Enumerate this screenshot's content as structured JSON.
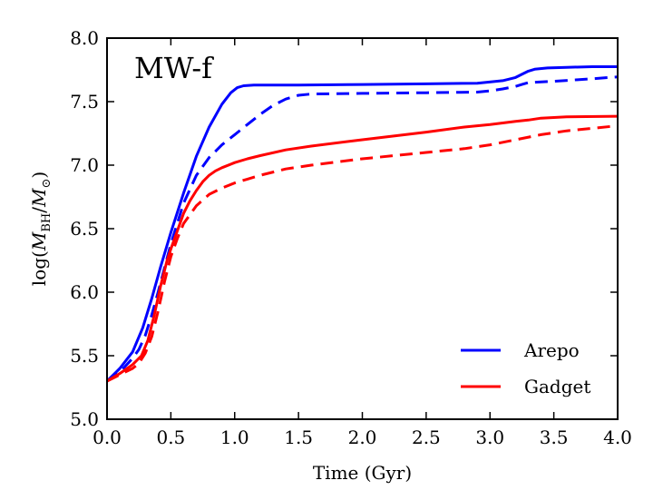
{
  "chart_data": {
    "type": "line",
    "title": "MW-f",
    "xlabel": "Time (Gyr)",
    "ylabel_prefix": "log(",
    "ylabel_m1": "M",
    "ylabel_sub1": "BH",
    "ylabel_mid": "/",
    "ylabel_m2": "M",
    "ylabel_sub2": "⊙",
    "ylabel_suffix": ")",
    "xlim": [
      0.0,
      4.0
    ],
    "ylim": [
      5.0,
      8.0
    ],
    "xticks": [
      "0.0",
      "0.5",
      "1.0",
      "1.5",
      "2.0",
      "2.5",
      "3.0",
      "3.5",
      "4.0"
    ],
    "yticks": [
      "5.0",
      "5.5",
      "6.0",
      "6.5",
      "7.0",
      "7.5",
      "8.0"
    ],
    "legend": [
      {
        "label": "Arepo",
        "color": "#0000ff"
      },
      {
        "label": "Gadget",
        "color": "#ff0000"
      }
    ],
    "legend_position": "lower-right",
    "series": [
      {
        "name": "Arepo (solid)",
        "color": "#0000ff",
        "style": "solid",
        "x": [
          0.0,
          0.1,
          0.2,
          0.28,
          0.35,
          0.42,
          0.5,
          0.6,
          0.7,
          0.8,
          0.9,
          0.97,
          1.02,
          1.07,
          1.15,
          1.5,
          2.0,
          2.5,
          2.9,
          3.1,
          3.2,
          3.25,
          3.3,
          3.35,
          3.45,
          3.6,
          3.8,
          4.0
        ],
        "y": [
          5.3,
          5.4,
          5.53,
          5.72,
          5.95,
          6.2,
          6.47,
          6.78,
          7.07,
          7.3,
          7.48,
          7.57,
          7.61,
          7.625,
          7.63,
          7.63,
          7.635,
          7.64,
          7.645,
          7.665,
          7.69,
          7.715,
          7.74,
          7.755,
          7.765,
          7.77,
          7.775,
          7.775
        ]
      },
      {
        "name": "Arepo (dashed)",
        "color": "#0000ff",
        "style": "dashed",
        "x": [
          0.0,
          0.1,
          0.2,
          0.25,
          0.3,
          0.35,
          0.4,
          0.5,
          0.6,
          0.7,
          0.8,
          0.9,
          1.0,
          1.1,
          1.2,
          1.3,
          1.4,
          1.5,
          1.6,
          2.0,
          2.5,
          2.9,
          3.0,
          3.1,
          3.2,
          3.25,
          3.3,
          3.5,
          3.8,
          4.0
        ],
        "y": [
          5.3,
          5.37,
          5.48,
          5.55,
          5.66,
          5.82,
          6.0,
          6.38,
          6.7,
          6.92,
          7.06,
          7.16,
          7.24,
          7.32,
          7.4,
          7.47,
          7.52,
          7.55,
          7.56,
          7.565,
          7.57,
          7.575,
          7.585,
          7.6,
          7.62,
          7.635,
          7.65,
          7.66,
          7.68,
          7.695
        ]
      },
      {
        "name": "Gadget (solid)",
        "color": "#ff0000",
        "style": "solid",
        "x": [
          0.0,
          0.1,
          0.2,
          0.27,
          0.32,
          0.37,
          0.42,
          0.47,
          0.5,
          0.55,
          0.6,
          0.65,
          0.7,
          0.75,
          0.8,
          0.85,
          0.9,
          1.0,
          1.1,
          1.2,
          1.4,
          1.6,
          2.0,
          2.5,
          2.8,
          3.0,
          3.2,
          3.3,
          3.4,
          3.6,
          4.0
        ],
        "y": [
          5.3,
          5.36,
          5.43,
          5.5,
          5.62,
          5.82,
          6.05,
          6.25,
          6.34,
          6.48,
          6.62,
          6.72,
          6.8,
          6.87,
          6.92,
          6.955,
          6.98,
          7.02,
          7.05,
          7.075,
          7.12,
          7.15,
          7.2,
          7.26,
          7.3,
          7.32,
          7.345,
          7.355,
          7.37,
          7.38,
          7.385
        ]
      },
      {
        "name": "Gadget (dashed)",
        "color": "#ff0000",
        "style": "dashed",
        "x": [
          0.0,
          0.1,
          0.2,
          0.25,
          0.3,
          0.35,
          0.4,
          0.45,
          0.5,
          0.55,
          0.6,
          0.7,
          0.8,
          0.9,
          1.0,
          1.1,
          1.2,
          1.4,
          1.6,
          2.0,
          2.5,
          2.8,
          3.0,
          3.2,
          3.4,
          3.6,
          3.8,
          4.0
        ],
        "y": [
          5.3,
          5.35,
          5.4,
          5.44,
          5.52,
          5.65,
          5.85,
          6.08,
          6.28,
          6.42,
          6.54,
          6.68,
          6.77,
          6.82,
          6.86,
          6.89,
          6.92,
          6.97,
          7.0,
          7.05,
          7.1,
          7.13,
          7.16,
          7.2,
          7.24,
          7.27,
          7.29,
          7.31
        ]
      }
    ]
  }
}
